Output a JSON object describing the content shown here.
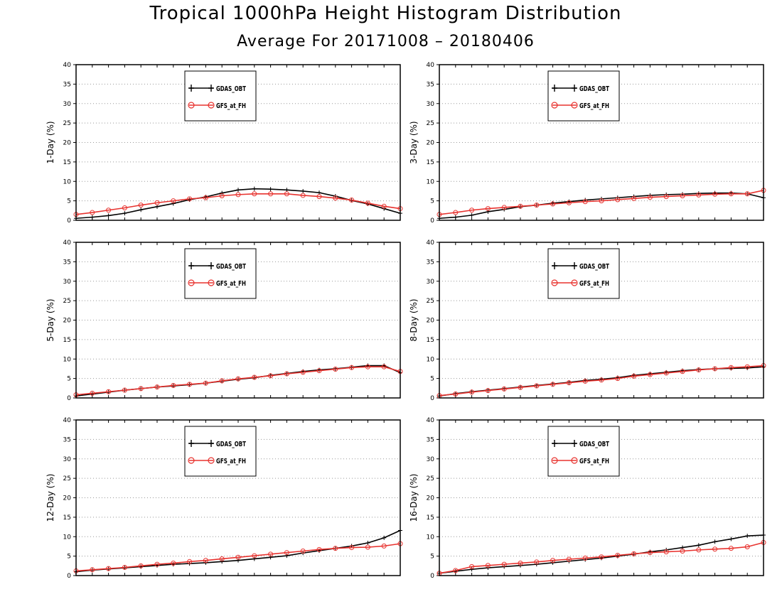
{
  "title": "Tropical 1000hPa Height Histogram Distribution",
  "subtitle": "Average For 20171008 – 20180406",
  "colors": {
    "series1": "#000000",
    "series2": "#e8332f",
    "grid": "#999999"
  },
  "chart_data": [
    {
      "type": "line",
      "ylabel": "1-Day (%)",
      "ylim": [
        0,
        40
      ],
      "yticks": [
        0,
        5,
        10,
        15,
        20,
        25,
        30,
        35,
        40
      ],
      "grid": true,
      "legend_placement": "top-center",
      "series": [
        {
          "name": "GDAS_OBT",
          "marker": "plus",
          "values": [
            0.5,
            0.8,
            1.2,
            1.8,
            2.7,
            3.5,
            4.3,
            5.3,
            6.0,
            7.0,
            7.8,
            8.1,
            8.0,
            7.8,
            7.5,
            7.1,
            6.2,
            5.1,
            4.2,
            3.0,
            1.8
          ]
        },
        {
          "name": "GFS_at_FH",
          "marker": "circle",
          "values": [
            1.5,
            2.0,
            2.6,
            3.2,
            3.9,
            4.5,
            5.0,
            5.5,
            5.8,
            6.3,
            6.6,
            6.8,
            6.8,
            6.8,
            6.4,
            6.1,
            5.7,
            5.2,
            4.4,
            3.6,
            3.0
          ]
        }
      ]
    },
    {
      "type": "line",
      "ylabel": "3-Day (%)",
      "ylim": [
        0,
        40
      ],
      "yticks": [
        0,
        5,
        10,
        15,
        20,
        25,
        30,
        35,
        40
      ],
      "grid": true,
      "legend_placement": "top-center",
      "series": [
        {
          "name": "GDAS_OBT",
          "marker": "plus",
          "values": [
            0.5,
            0.8,
            1.3,
            2.2,
            2.8,
            3.5,
            3.9,
            4.4,
            4.8,
            5.2,
            5.5,
            5.8,
            6.1,
            6.4,
            6.6,
            6.7,
            6.9,
            7.0,
            7.0,
            6.8,
            5.8
          ]
        },
        {
          "name": "GFS_at_FH",
          "marker": "circle",
          "values": [
            1.5,
            2.0,
            2.6,
            3.0,
            3.3,
            3.6,
            3.9,
            4.2,
            4.5,
            4.8,
            5.0,
            5.3,
            5.6,
            5.9,
            6.1,
            6.3,
            6.5,
            6.7,
            6.8,
            6.8,
            7.7
          ]
        }
      ]
    },
    {
      "type": "line",
      "ylabel": "5-Day (%)",
      "ylim": [
        0,
        40
      ],
      "yticks": [
        0,
        5,
        10,
        15,
        20,
        25,
        30,
        35,
        40
      ],
      "grid": true,
      "legend_placement": "top-center",
      "series": [
        {
          "name": "GDAS_OBT",
          "marker": "plus",
          "values": [
            0.5,
            1.0,
            1.5,
            2.0,
            2.4,
            2.8,
            3.1,
            3.4,
            3.8,
            4.3,
            4.8,
            5.2,
            5.8,
            6.3,
            6.8,
            7.2,
            7.5,
            7.9,
            8.3,
            8.3,
            6.5
          ]
        },
        {
          "name": "GFS_at_FH",
          "marker": "circle",
          "values": [
            0.8,
            1.2,
            1.6,
            2.0,
            2.4,
            2.8,
            3.2,
            3.5,
            3.8,
            4.4,
            4.9,
            5.3,
            5.7,
            6.2,
            6.6,
            7.0,
            7.4,
            7.8,
            8.0,
            8.0,
            6.8
          ]
        }
      ]
    },
    {
      "type": "line",
      "ylabel": "8-Day (%)",
      "ylim": [
        0,
        40
      ],
      "yticks": [
        0,
        5,
        10,
        15,
        20,
        25,
        30,
        35,
        40
      ],
      "grid": true,
      "legend_placement": "top-center",
      "series": [
        {
          "name": "GDAS_OBT",
          "marker": "plus",
          "values": [
            0.5,
            1.1,
            1.6,
            2.0,
            2.4,
            2.8,
            3.2,
            3.6,
            4.0,
            4.5,
            4.8,
            5.2,
            5.8,
            6.2,
            6.6,
            7.0,
            7.3,
            7.5,
            7.6,
            7.7,
            8.0
          ]
        },
        {
          "name": "GFS_at_FH",
          "marker": "circle",
          "values": [
            0.6,
            1.0,
            1.5,
            1.9,
            2.3,
            2.7,
            3.1,
            3.5,
            3.9,
            4.3,
            4.6,
            5.0,
            5.6,
            6.0,
            6.4,
            6.8,
            7.2,
            7.5,
            7.8,
            8.0,
            8.3
          ]
        }
      ]
    },
    {
      "type": "line",
      "ylabel": "12-Day (%)",
      "ylim": [
        0,
        40
      ],
      "yticks": [
        0,
        5,
        10,
        15,
        20,
        25,
        30,
        35,
        40
      ],
      "grid": true,
      "legend_placement": "top-center",
      "series": [
        {
          "name": "GDAS_OBT",
          "marker": "plus",
          "values": [
            1.0,
            1.4,
            1.7,
            2.0,
            2.3,
            2.6,
            2.9,
            3.1,
            3.3,
            3.6,
            3.9,
            4.3,
            4.7,
            5.1,
            5.8,
            6.4,
            7.0,
            7.6,
            8.4,
            9.7,
            11.6
          ]
        },
        {
          "name": "GFS_at_FH",
          "marker": "circle",
          "values": [
            1.2,
            1.5,
            1.8,
            2.1,
            2.5,
            2.9,
            3.2,
            3.6,
            3.9,
            4.3,
            4.7,
            5.1,
            5.5,
            5.9,
            6.3,
            6.7,
            7.0,
            7.2,
            7.3,
            7.6,
            8.2
          ]
        }
      ]
    },
    {
      "type": "line",
      "ylabel": "16-Day (%)",
      "ylim": [
        0,
        40
      ],
      "yticks": [
        0,
        5,
        10,
        15,
        20,
        25,
        30,
        35,
        40
      ],
      "grid": true,
      "legend_placement": "top-center",
      "series": [
        {
          "name": "GDAS_OBT",
          "marker": "plus",
          "values": [
            0.6,
            1.1,
            1.6,
            2.0,
            2.3,
            2.6,
            2.9,
            3.3,
            3.7,
            4.1,
            4.5,
            5.0,
            5.5,
            6.1,
            6.6,
            7.2,
            7.8,
            8.7,
            9.4,
            10.2,
            10.4
          ]
        },
        {
          "name": "GFS_at_FH",
          "marker": "circle",
          "values": [
            0.6,
            1.3,
            2.3,
            2.6,
            2.9,
            3.2,
            3.5,
            3.9,
            4.2,
            4.5,
            4.8,
            5.2,
            5.6,
            5.9,
            6.1,
            6.3,
            6.6,
            6.8,
            7.0,
            7.4,
            8.5
          ]
        }
      ]
    }
  ]
}
